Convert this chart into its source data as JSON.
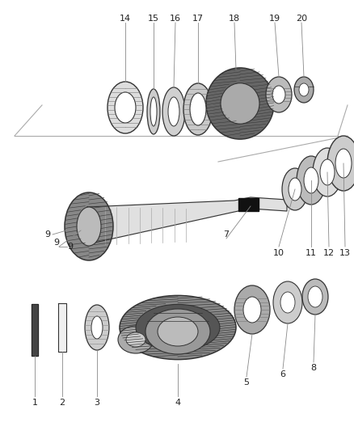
{
  "background_color": "#ffffff",
  "label_color": "#222222",
  "label_fontsize": 8.0,
  "figsize": [
    4.38,
    5.33
  ],
  "dpi": 100,
  "guide_color": "#888888",
  "part_edge": "#333333",
  "part_fill_dark": "#555555",
  "part_fill_mid": "#999999",
  "part_fill_light": "#cccccc",
  "part_fill_white": "#ffffff"
}
